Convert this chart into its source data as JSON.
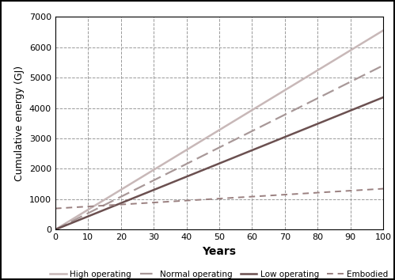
{
  "title": "",
  "xlabel": "Years",
  "ylabel": "Cumulative energy (GJ)",
  "xlim": [
    0,
    100
  ],
  "ylim": [
    0,
    7000
  ],
  "xticks": [
    0,
    10,
    20,
    30,
    40,
    50,
    60,
    70,
    80,
    90,
    100
  ],
  "yticks": [
    0,
    1000,
    2000,
    3000,
    4000,
    5000,
    6000,
    7000
  ],
  "lines": [
    {
      "label": "High operating",
      "slope": 65.5,
      "intercept": 0,
      "color": "#c8b8b8",
      "linestyle": "solid",
      "linewidth": 1.8
    },
    {
      "label": "Normal operating",
      "slope": 54.0,
      "intercept": 0,
      "color": "#a89898",
      "linestyle": "dashed",
      "linewidth": 1.6,
      "dashes": [
        7,
        3
      ]
    },
    {
      "label": "Low operating",
      "slope": 43.5,
      "intercept": 0,
      "color": "#6b5050",
      "linestyle": "solid",
      "linewidth": 1.8
    },
    {
      "label": "Embodied",
      "slope": 6.5,
      "intercept": 695,
      "color": "#9a8080",
      "linestyle": "dashed",
      "linewidth": 1.4,
      "dashes": [
        4,
        3
      ]
    }
  ],
  "grid_color": "#999999",
  "grid_linestyle": "--",
  "background_color": "#ffffff",
  "legend_ncol": 4,
  "figsize": [
    4.99,
    3.54
  ],
  "dpi": 100,
  "xlabel_fontsize": 10,
  "ylabel_fontsize": 9,
  "tick_fontsize": 8
}
